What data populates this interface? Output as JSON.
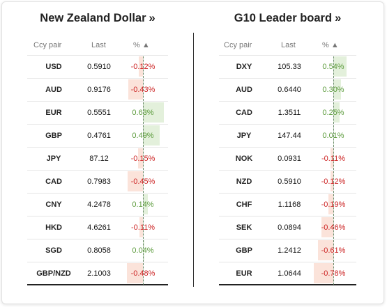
{
  "left": {
    "title": "New Zealand Dollar",
    "title_arrow": "»",
    "headers": {
      "pair": "Ccy pair",
      "last": "Last",
      "pct": "% ▲"
    },
    "rows": [
      {
        "pair": "USD",
        "last": "0.5910",
        "pct": "-0.12%",
        "value": -0.12
      },
      {
        "pair": "AUD",
        "last": "0.9176",
        "pct": "-0.43%",
        "value": -0.43
      },
      {
        "pair": "EUR",
        "last": "0.5551",
        "pct": "0.63%",
        "value": 0.63
      },
      {
        "pair": "GBP",
        "last": "0.4761",
        "pct": "0.49%",
        "value": 0.49
      },
      {
        "pair": "JPY",
        "last": "87.12",
        "pct": "-0.15%",
        "value": -0.15
      },
      {
        "pair": "CAD",
        "last": "0.7983",
        "pct": "-0.45%",
        "value": -0.45
      },
      {
        "pair": "CNY",
        "last": "4.2478",
        "pct": "0.14%",
        "value": 0.14
      },
      {
        "pair": "HKD",
        "last": "4.6261",
        "pct": "-0.11%",
        "value": -0.11
      },
      {
        "pair": "SGD",
        "last": "0.8058",
        "pct": "0.04%",
        "value": 0.04
      },
      {
        "pair": "GBP/NZD",
        "last": "2.1003",
        "pct": "-0.48%",
        "value": -0.48
      }
    ]
  },
  "right": {
    "title": "G10 Leader board",
    "title_arrow": "»",
    "headers": {
      "pair": "Ccy pair",
      "last": "Last",
      "pct": "% ▲"
    },
    "rows": [
      {
        "pair": "DXY",
        "last": "105.33",
        "pct": "0.54%",
        "value": 0.54
      },
      {
        "pair": "AUD",
        "last": "0.6440",
        "pct": "0.30%",
        "value": 0.3
      },
      {
        "pair": "CAD",
        "last": "1.3511",
        "pct": "0.25%",
        "value": 0.25
      },
      {
        "pair": "JPY",
        "last": "147.44",
        "pct": "0.01%",
        "value": 0.01
      },
      {
        "pair": "NOK",
        "last": "0.0931",
        "pct": "-0.11%",
        "value": -0.11
      },
      {
        "pair": "NZD",
        "last": "0.5910",
        "pct": "-0.12%",
        "value": -0.12
      },
      {
        "pair": "CHF",
        "last": "1.1168",
        "pct": "-0.19%",
        "value": -0.19
      },
      {
        "pair": "SEK",
        "last": "0.0894",
        "pct": "-0.46%",
        "value": -0.46
      },
      {
        "pair": "GBP",
        "last": "1.2412",
        "pct": "-0.61%",
        "value": -0.61
      },
      {
        "pair": "EUR",
        "last": "1.0644",
        "pct": "-0.78%",
        "value": -0.78
      }
    ]
  },
  "colors": {
    "positive": "#5a9a3a",
    "negative": "#cc2222"
  }
}
